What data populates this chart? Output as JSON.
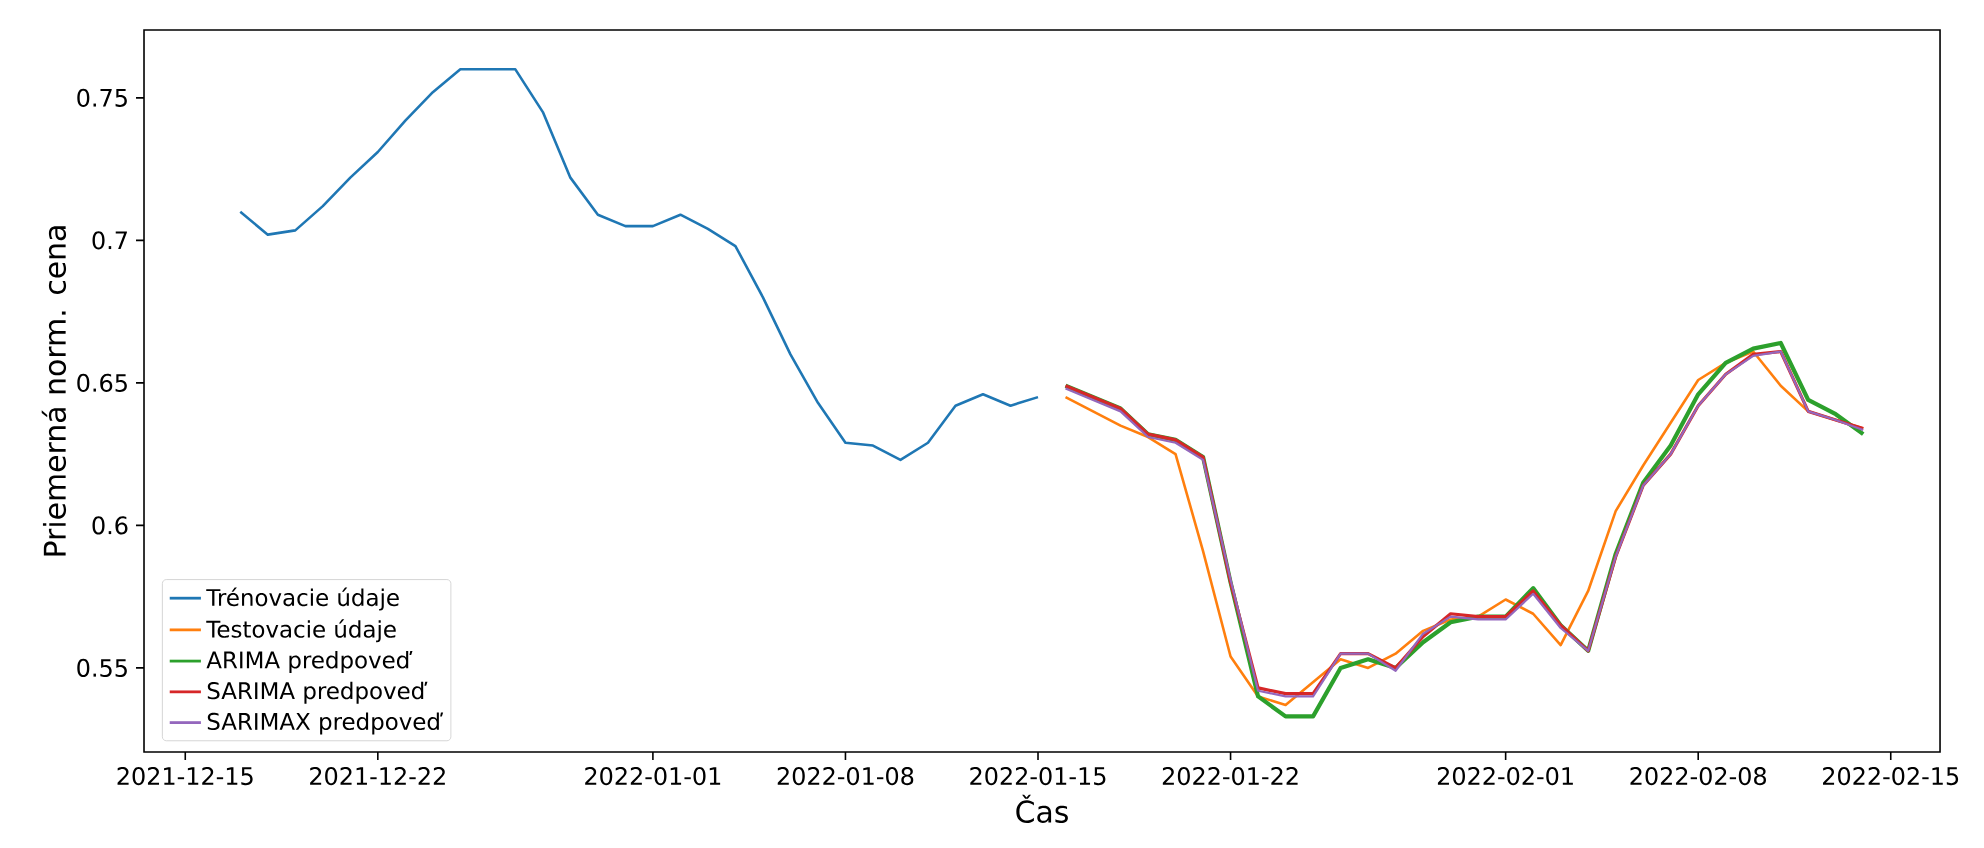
{
  "chart_data": {
    "type": "line",
    "xlabel": "Čas",
    "ylabel": "Priemerná norm. cena",
    "legend": "bottom left",
    "grid": false,
    "marker": "none",
    "line_style": "solid",
    "xlim": [
      "2021-12-13T12:00",
      "2022-02-16T19:00"
    ],
    "ylim": [
      0.5205,
      0.7738
    ],
    "xticks": [
      "2021-12-15",
      "2021-12-22",
      "2022-01-01",
      "2022-01-08",
      "2022-01-15",
      "2022-01-22",
      "2022-02-01",
      "2022-02-08",
      "2022-02-15"
    ],
    "yticks": [
      0.55,
      0.6,
      0.65,
      0.7,
      0.75
    ],
    "series": [
      {
        "name": "Trénovacie údaje",
        "color": "#1f77b4",
        "x": [
          "2021-12-17",
          "2021-12-18",
          "2021-12-19",
          "2021-12-20",
          "2021-12-21",
          "2021-12-22",
          "2021-12-23",
          "2021-12-24",
          "2021-12-25",
          "2021-12-26",
          "2021-12-27",
          "2021-12-28",
          "2021-12-29",
          "2021-12-30",
          "2021-12-31",
          "2022-01-01",
          "2022-01-02",
          "2022-01-03",
          "2022-01-04",
          "2022-01-05",
          "2022-01-06",
          "2022-01-07",
          "2022-01-08",
          "2022-01-09",
          "2022-01-10",
          "2022-01-11",
          "2022-01-12",
          "2022-01-13",
          "2022-01-14",
          "2022-01-15"
        ],
        "values": [
          0.71,
          0.702,
          0.7035,
          0.712,
          0.722,
          0.731,
          0.742,
          0.752,
          0.76,
          0.76,
          0.76,
          0.745,
          0.722,
          0.709,
          0.705,
          0.705,
          0.709,
          0.704,
          0.698,
          0.68,
          0.66,
          0.643,
          0.629,
          0.628,
          0.623,
          0.629,
          0.642,
          0.646,
          0.642,
          0.645
        ]
      },
      {
        "name": "Testovacie údaje",
        "color": "#ff7f0e",
        "x": [
          "2022-01-16",
          "2022-01-17",
          "2022-01-18",
          "2022-01-19",
          "2022-01-20",
          "2022-01-21",
          "2022-01-22",
          "2022-01-23",
          "2022-01-24",
          "2022-01-25",
          "2022-01-26",
          "2022-01-27",
          "2022-01-28",
          "2022-01-29",
          "2022-01-30",
          "2022-01-31",
          "2022-02-01",
          "2022-02-02",
          "2022-02-03",
          "2022-02-04",
          "2022-02-05",
          "2022-02-06",
          "2022-02-07",
          "2022-02-08",
          "2022-02-09",
          "2022-02-10",
          "2022-02-11",
          "2022-02-12",
          "2022-02-13",
          "2022-02-14"
        ],
        "values": [
          0.645,
          0.64,
          0.635,
          0.631,
          0.625,
          0.591,
          0.554,
          0.54,
          0.537,
          0.545,
          0.553,
          0.55,
          0.555,
          0.563,
          0.567,
          0.568,
          0.574,
          0.569,
          0.558,
          0.577,
          0.605,
          0.621,
          0.636,
          0.651,
          0.657,
          0.661,
          0.649,
          0.64,
          0.637,
          0.634
        ]
      },
      {
        "name": "ARIMA predpoveď",
        "color": "#2ca02c",
        "x": [
          "2022-01-16",
          "2022-01-17",
          "2022-01-18",
          "2022-01-19",
          "2022-01-20",
          "2022-01-21",
          "2022-01-22",
          "2022-01-23",
          "2022-01-24",
          "2022-01-25",
          "2022-01-26",
          "2022-01-27",
          "2022-01-28",
          "2022-01-29",
          "2022-01-30",
          "2022-01-31",
          "2022-02-01",
          "2022-02-02",
          "2022-02-03",
          "2022-02-04",
          "2022-02-05",
          "2022-02-06",
          "2022-02-07",
          "2022-02-08",
          "2022-02-09",
          "2022-02-10",
          "2022-02-11",
          "2022-02-12",
          "2022-02-13",
          "2022-02-14"
        ],
        "values": [
          0.649,
          0.645,
          0.641,
          0.632,
          0.63,
          0.624,
          0.58,
          0.54,
          0.533,
          0.533,
          0.55,
          0.553,
          0.55,
          0.559,
          0.566,
          0.568,
          0.568,
          0.578,
          0.565,
          0.556,
          0.59,
          0.615,
          0.628,
          0.646,
          0.657,
          0.662,
          0.664,
          0.644,
          0.639,
          0.632
        ]
      },
      {
        "name": "SARIMA predpoveď",
        "color": "#d62728",
        "x": [
          "2022-01-16",
          "2022-01-17",
          "2022-01-18",
          "2022-01-19",
          "2022-01-20",
          "2022-01-21",
          "2022-01-22",
          "2022-01-23",
          "2022-01-24",
          "2022-01-25",
          "2022-01-26",
          "2022-01-27",
          "2022-01-28",
          "2022-01-29",
          "2022-01-30",
          "2022-01-31",
          "2022-02-01",
          "2022-02-02",
          "2022-02-03",
          "2022-02-04",
          "2022-02-05",
          "2022-02-06",
          "2022-02-07",
          "2022-02-08",
          "2022-02-09",
          "2022-02-10",
          "2022-02-11",
          "2022-02-12",
          "2022-02-13",
          "2022-02-14"
        ],
        "values": [
          0.649,
          0.645,
          0.641,
          0.632,
          0.63,
          0.624,
          0.58,
          0.543,
          0.541,
          0.541,
          0.555,
          0.555,
          0.55,
          0.561,
          0.569,
          0.568,
          0.568,
          0.577,
          0.565,
          0.556,
          0.589,
          0.614,
          0.625,
          0.642,
          0.653,
          0.66,
          0.661,
          0.64,
          0.637,
          0.634
        ]
      },
      {
        "name": "SARIMAX predpoveď",
        "color": "#9467bd",
        "x": [
          "2022-01-16",
          "2022-01-17",
          "2022-01-18",
          "2022-01-19",
          "2022-01-20",
          "2022-01-21",
          "2022-01-22",
          "2022-01-23",
          "2022-01-24",
          "2022-01-25",
          "2022-01-26",
          "2022-01-27",
          "2022-01-28",
          "2022-01-29",
          "2022-01-30",
          "2022-01-31",
          "2022-02-01",
          "2022-02-02",
          "2022-02-03",
          "2022-02-04",
          "2022-02-05",
          "2022-02-06",
          "2022-02-07",
          "2022-02-08",
          "2022-02-09",
          "2022-02-10",
          "2022-02-11",
          "2022-02-12",
          "2022-02-13",
          "2022-02-14"
        ],
        "values": [
          0.648,
          0.644,
          0.64,
          0.631,
          0.629,
          0.623,
          0.581,
          0.542,
          0.54,
          0.54,
          0.555,
          0.555,
          0.549,
          0.562,
          0.568,
          0.567,
          0.567,
          0.576,
          0.564,
          0.556,
          0.589,
          0.614,
          0.625,
          0.642,
          0.653,
          0.6595,
          0.661,
          0.64,
          0.637,
          0.6335
        ]
      }
    ]
  }
}
